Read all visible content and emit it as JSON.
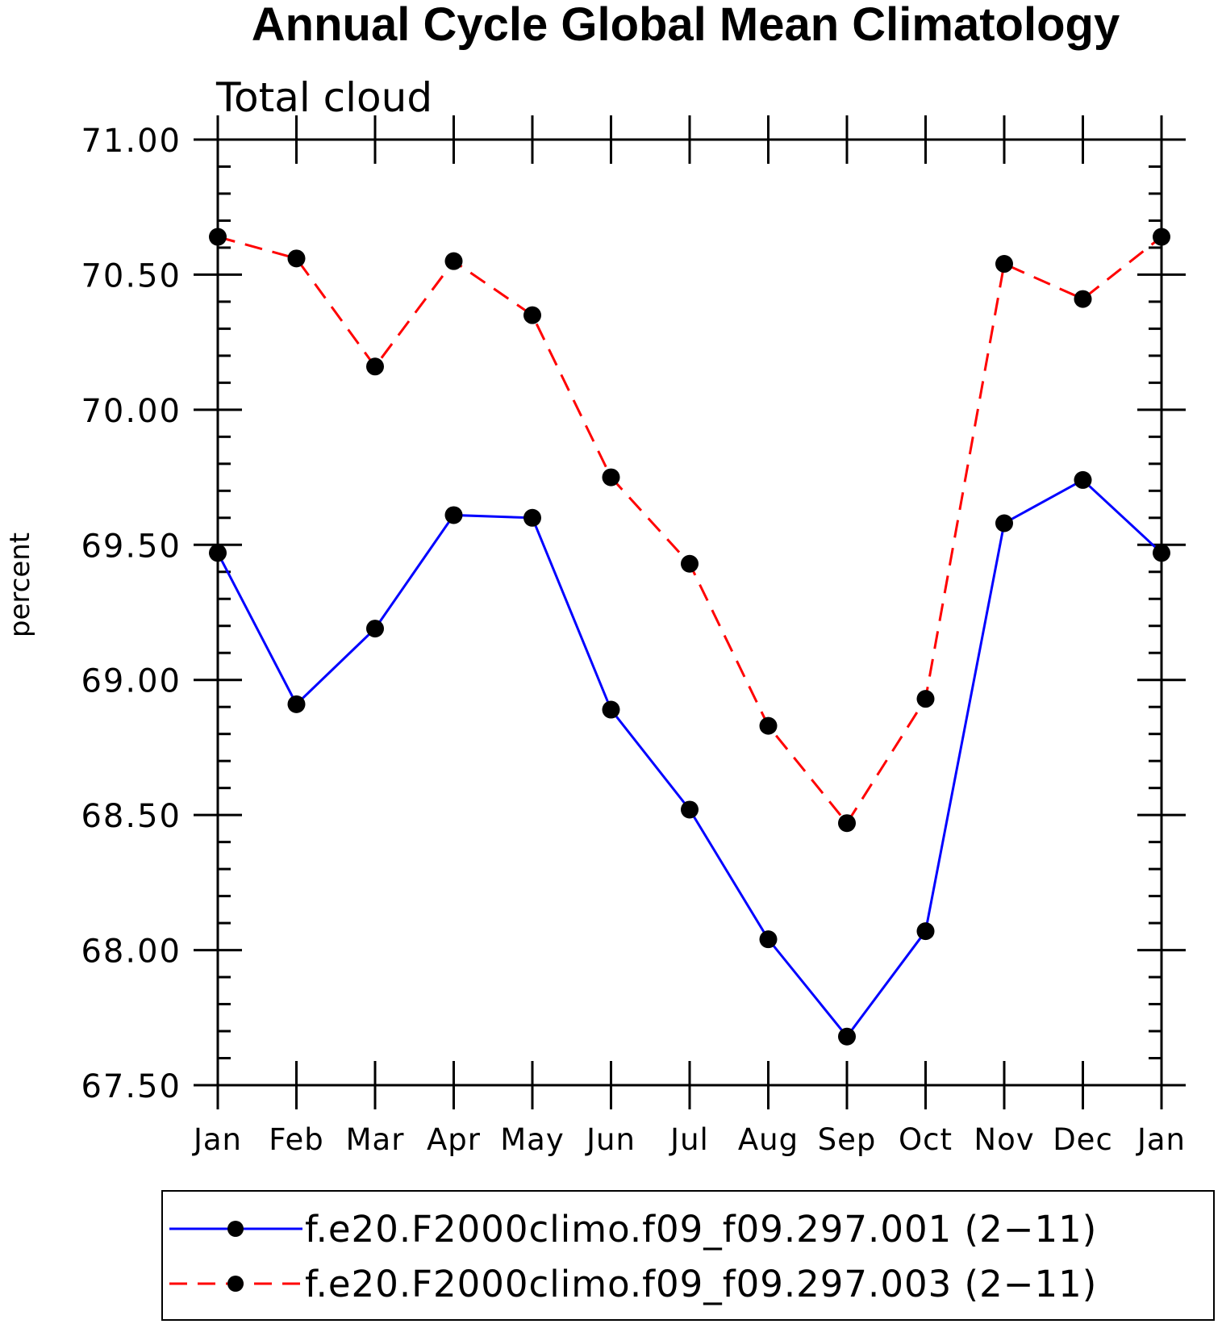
{
  "chart_data": {
    "type": "line",
    "title": "Annual Cycle Global Mean Climatology",
    "subtitle": "Total cloud",
    "ylabel": "percent",
    "xlabel": "",
    "categories": [
      "Jan",
      "Feb",
      "Mar",
      "Apr",
      "May",
      "Jun",
      "Jul",
      "Aug",
      "Sep",
      "Oct",
      "Nov",
      "Dec",
      "Jan"
    ],
    "ylim": [
      67.5,
      71.0
    ],
    "yticks": [
      "67.50",
      "68.00",
      "68.50",
      "69.00",
      "69.50",
      "70.00",
      "70.50",
      "71.00"
    ],
    "grid": false,
    "legend_position": "bottom",
    "series": [
      {
        "name": "f.e20.F2000climo.f09_f09.297.001 (2−11)",
        "color": "#0000ff",
        "line_style": "solid",
        "marker": "filled-circle",
        "values": [
          69.47,
          68.91,
          69.19,
          69.61,
          69.6,
          68.89,
          68.52,
          68.04,
          67.68,
          68.07,
          69.58,
          69.74,
          69.47
        ]
      },
      {
        "name": "f.e20.F2000climo.f09_f09.297.003 (2−11)",
        "color": "#ff0000",
        "line_style": "dashed",
        "marker": "filled-circle",
        "values": [
          70.64,
          70.56,
          70.16,
          70.55,
          70.35,
          69.75,
          69.43,
          68.83,
          68.47,
          68.93,
          70.54,
          70.41,
          70.64
        ]
      }
    ]
  }
}
